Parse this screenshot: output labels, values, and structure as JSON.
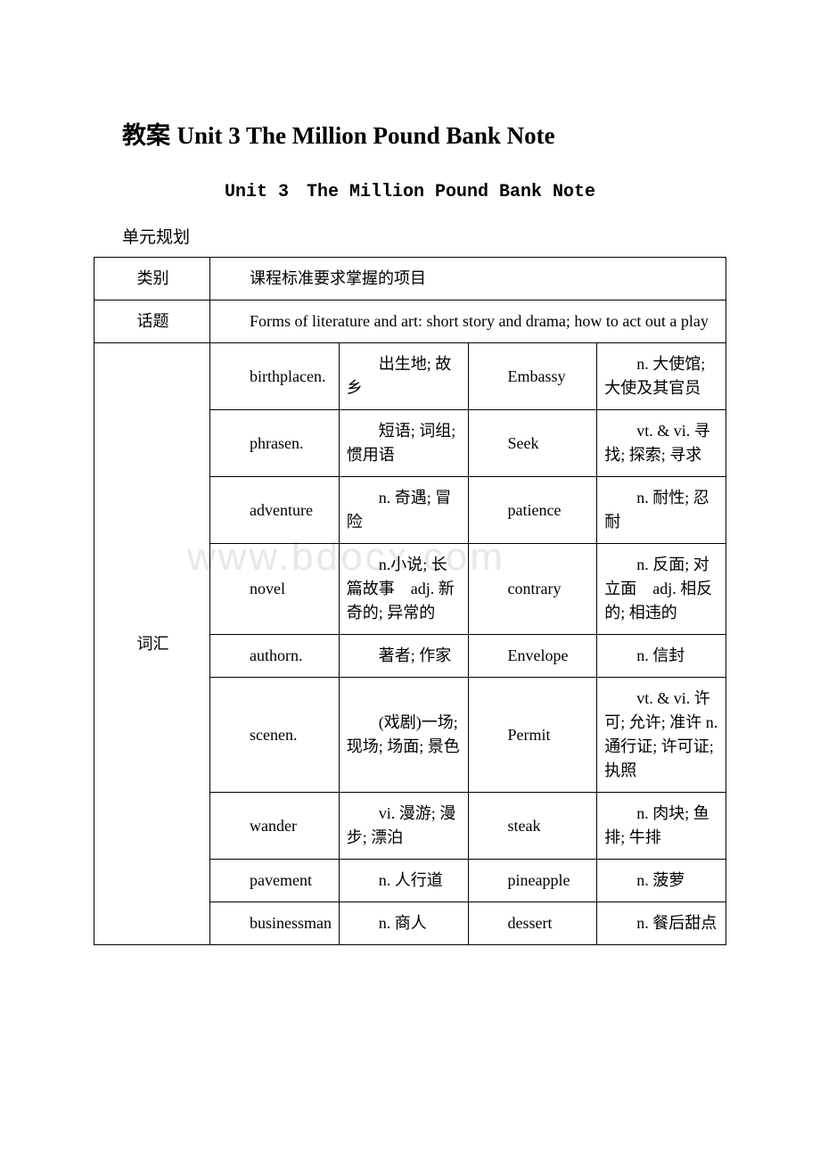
{
  "title_prefix": "教案 ",
  "title_main": "Unit 3 The Million Pound Bank Note",
  "subtitle": "Unit 3　The Million Pound Bank Note",
  "section_label": "单元规划",
  "watermark": "www.bdocx.com",
  "header": {
    "category": "类别",
    "requirement": "课程标准要求掌握的项目"
  },
  "topic": {
    "label": "话题",
    "content": "Forms of literature and art: short story and drama; how to act out a play"
  },
  "vocab_label": "词汇",
  "rows": [
    {
      "c2": "birthplacen.",
      "c3": "出生地; 故乡",
      "c4": "Embassy",
      "c5": "n. 大使馆; 大使及其官员"
    },
    {
      "c2": "phrasen.",
      "c3": "短语; 词组; 惯用语",
      "c4": "Seek",
      "c5": "vt. & vi. 寻找; 探索; 寻求"
    },
    {
      "c2": "adventure",
      "c3": "n. 奇遇; 冒险",
      "c4": "patience",
      "c5": "n. 耐性; 忍耐"
    },
    {
      "c2": "novel",
      "c3": "n.小说; 长篇故事　adj. 新奇的; 异常的",
      "c4": "contrary",
      "c5": "n. 反面; 对立面　adj. 相反的; 相违的"
    },
    {
      "c2": "authorn.",
      "c3": "著者; 作家",
      "c4": "Envelope",
      "c5": "n. 信封"
    },
    {
      "c2": "scenen.",
      "c3": "(戏剧)一场; 现场; 场面; 景色",
      "c4": "Permit",
      "c5": "vt. & vi. 许可; 允许; 准许 n. 通行证; 许可证; 执照"
    },
    {
      "c2": "wander",
      "c3": "vi. 漫游; 漫步; 漂泊",
      "c4": "steak",
      "c5": "n. 肉块; 鱼排; 牛排"
    },
    {
      "c2": "pavement",
      "c3": "n. 人行道",
      "c4": "pineapple",
      "c5": "n. 菠萝"
    },
    {
      "c2": "businessman",
      "c3": "n. 商人",
      "c4": "dessert",
      "c5": "n. 餐后甜点"
    }
  ]
}
